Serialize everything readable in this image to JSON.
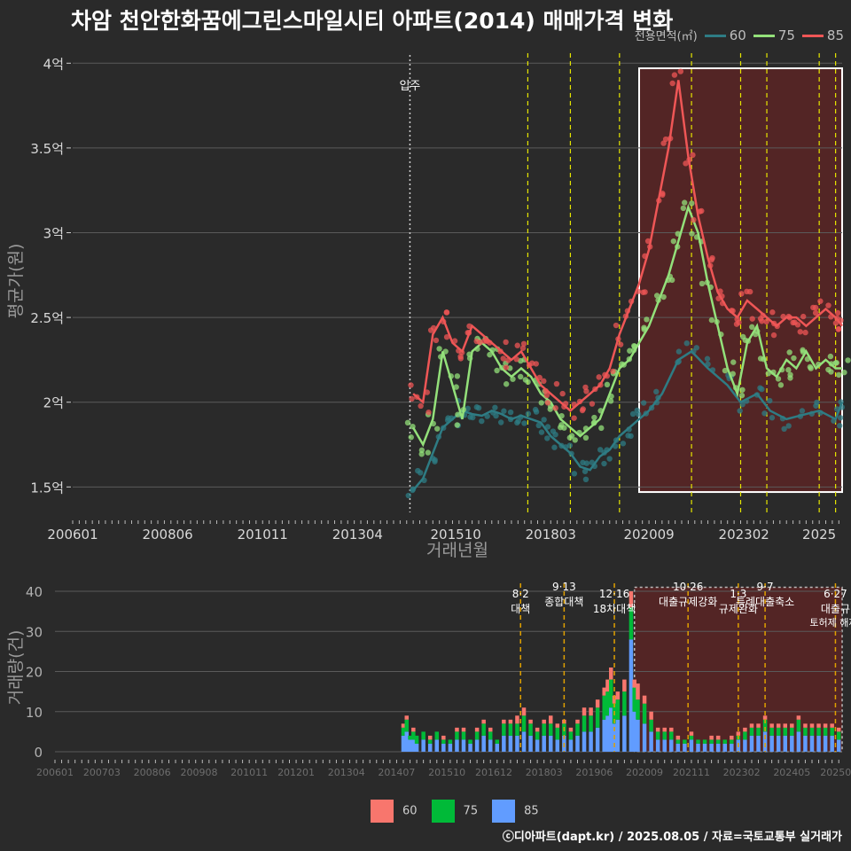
{
  "title": "차암 천안한화꿈에그린스마일시티 아파트(2014) 매매가격 변화",
  "legend_title": "전용면적(㎡)",
  "colors": {
    "s60": "#2e7c84",
    "s75": "#93e07a",
    "s85": "#ef5656",
    "v60": "#f8766d",
    "v75": "#00ba38",
    "v85": "#619cff",
    "policy": "#e6e600",
    "policy_bottom": "#e0a000"
  },
  "credit": "ⓒ디아파트(dapt.kr) / 2025.08.05 / 자료=국토교통부 실거래가",
  "chart_data": [
    {
      "type": "line",
      "title": "차암 천안한화꿈에그린스마일시티 아파트(2014) 매매가격 변화",
      "xlabel": "거래년월",
      "ylabel": "평균가(원)",
      "x_ticks": [
        "200601",
        "200806",
        "201011",
        "201304",
        "201510",
        "201803",
        "202009",
        "202302",
        "2025"
      ],
      "y_ticks": [
        "1.5억",
        "2억",
        "2.5억",
        "3억",
        "3.5억",
        "4억"
      ],
      "y_tick_values": [
        1.5,
        2.0,
        2.5,
        3.0,
        3.5,
        4.0
      ],
      "ylim": [
        1.35,
        4.08
      ],
      "xlim": [
        "2006-01",
        "2025-08"
      ],
      "annotation": {
        "x": "2014-08",
        "label": "입주"
      },
      "policy_lines": [
        "2017-08",
        "2018-09",
        "2019-12",
        "2021-10",
        "2023-01",
        "2023-09",
        "2025-01",
        "2025-06"
      ],
      "highlight_range": [
        "2020-06",
        "2025-08"
      ],
      "series": [
        {
          "name": "60",
          "x": [
            "2014-09",
            "2014-12",
            "2015-03",
            "2015-06",
            "2015-09",
            "2015-12",
            "2016-03",
            "2016-06",
            "2016-09",
            "2016-12",
            "2017-03",
            "2017-06",
            "2017-09",
            "2017-12",
            "2018-03",
            "2018-06",
            "2018-09",
            "2018-12",
            "2019-03",
            "2019-06",
            "2019-09",
            "2019-12",
            "2020-03",
            "2020-06",
            "2020-09",
            "2021-01",
            "2021-06",
            "2021-10",
            "2022-03",
            "2022-09",
            "2023-01",
            "2023-06",
            "2023-10",
            "2024-03",
            "2024-09",
            "2025-01",
            "2025-06",
            "2025-08"
          ],
          "values": [
            1.48,
            1.55,
            1.7,
            1.85,
            1.9,
            1.95,
            1.93,
            1.92,
            1.95,
            1.93,
            1.9,
            1.92,
            1.9,
            1.88,
            1.8,
            1.75,
            1.7,
            1.62,
            1.6,
            1.68,
            1.72,
            1.8,
            1.85,
            1.9,
            1.95,
            2.05,
            2.25,
            2.3,
            2.2,
            2.1,
            2.0,
            2.05,
            1.95,
            1.9,
            1.93,
            1.95,
            1.9,
            2.0
          ]
        },
        {
          "name": "75",
          "x": [
            "2014-09",
            "2014-12",
            "2015-03",
            "2015-06",
            "2015-09",
            "2015-12",
            "2016-03",
            "2016-06",
            "2016-09",
            "2016-12",
            "2017-03",
            "2017-06",
            "2017-09",
            "2017-12",
            "2018-03",
            "2018-06",
            "2018-09",
            "2018-12",
            "2019-03",
            "2019-06",
            "2019-09",
            "2019-12",
            "2020-03",
            "2020-06",
            "2020-09",
            "2020-12",
            "2021-03",
            "2021-06",
            "2021-09",
            "2021-12",
            "2022-03",
            "2022-06",
            "2022-09",
            "2022-12",
            "2023-03",
            "2023-06",
            "2023-09",
            "2023-12",
            "2024-03",
            "2024-06",
            "2024-09",
            "2024-12",
            "2025-03",
            "2025-06",
            "2025-08"
          ],
          "values": [
            1.85,
            1.75,
            1.9,
            2.3,
            2.1,
            1.9,
            2.3,
            2.35,
            2.3,
            2.2,
            2.15,
            2.2,
            2.15,
            2.05,
            2.0,
            1.9,
            1.85,
            1.8,
            1.85,
            1.9,
            2.05,
            2.2,
            2.25,
            2.35,
            2.45,
            2.6,
            2.75,
            2.95,
            3.15,
            3.0,
            2.7,
            2.45,
            2.2,
            2.05,
            2.35,
            2.45,
            2.2,
            2.15,
            2.25,
            2.2,
            2.3,
            2.2,
            2.25,
            2.2,
            2.2
          ]
        },
        {
          "name": "85",
          "x": [
            "2014-09",
            "2014-12",
            "2015-03",
            "2015-06",
            "2015-09",
            "2015-12",
            "2016-03",
            "2016-06",
            "2016-09",
            "2016-12",
            "2017-03",
            "2017-06",
            "2017-09",
            "2017-12",
            "2018-03",
            "2018-06",
            "2018-09",
            "2018-12",
            "2019-03",
            "2019-06",
            "2019-09",
            "2019-12",
            "2020-03",
            "2020-06",
            "2020-09",
            "2020-12",
            "2021-03",
            "2021-06",
            "2021-09",
            "2021-12",
            "2022-03",
            "2022-06",
            "2022-09",
            "2022-12",
            "2023-03",
            "2023-06",
            "2023-09",
            "2023-12",
            "2024-03",
            "2024-06",
            "2024-09",
            "2024-12",
            "2025-03",
            "2025-06",
            "2025-08"
          ],
          "values": [
            2.05,
            2.0,
            2.4,
            2.5,
            2.35,
            2.3,
            2.45,
            2.4,
            2.35,
            2.3,
            2.25,
            2.3,
            2.2,
            2.1,
            2.05,
            2.0,
            1.95,
            2.0,
            2.05,
            2.1,
            2.2,
            2.4,
            2.55,
            2.7,
            2.9,
            3.2,
            3.5,
            3.9,
            3.45,
            3.1,
            2.85,
            2.65,
            2.55,
            2.5,
            2.6,
            2.55,
            2.5,
            2.45,
            2.5,
            2.5,
            2.45,
            2.5,
            2.55,
            2.5,
            2.45
          ]
        }
      ]
    },
    {
      "type": "bar",
      "stacked": true,
      "ylabel": "거래량(건)",
      "x_ticks": [
        "200601",
        "200703",
        "200806",
        "200908",
        "201011",
        "201201",
        "201304",
        "201407",
        "201510",
        "201612",
        "201803",
        "201906",
        "202009",
        "202111",
        "202302",
        "202405",
        "202507"
      ],
      "y_ticks": [
        "0",
        "10",
        "20",
        "30",
        "40"
      ],
      "y_tick_values": [
        0,
        10,
        20,
        30,
        40
      ],
      "ylim": [
        0,
        42
      ],
      "policy_lines": [
        {
          "x": "2017-08",
          "label": "8·2 대책"
        },
        {
          "x": "2018-09",
          "label": "9·13 종합대책"
        },
        {
          "x": "2019-12",
          "label": "12·16 18차대책"
        },
        {
          "x": "2021-10",
          "label": "10·26 대출규제강화"
        },
        {
          "x": "2023-01",
          "label": "1·3 규제완화"
        },
        {
          "x": "2023-09",
          "label": "9·7 특례대출축소"
        },
        {
          "x": "2025-06",
          "label": "6·27 대출규"
        }
      ],
      "policy_extra_labels": [
        "토허제 해제"
      ],
      "highlight_range": [
        "2020-06",
        "2025-08"
      ],
      "legend": [
        "60",
        "75",
        "85"
      ],
      "months": [
        "2014-09",
        "2014-10",
        "2014-11",
        "2014-12",
        "2015-01",
        "2015-03",
        "2015-05",
        "2015-07",
        "2015-09",
        "2015-11",
        "2016-01",
        "2016-03",
        "2016-05",
        "2016-07",
        "2016-09",
        "2016-11",
        "2017-01",
        "2017-03",
        "2017-05",
        "2017-07",
        "2017-09",
        "2017-11",
        "2018-01",
        "2018-03",
        "2018-05",
        "2018-07",
        "2018-09",
        "2018-11",
        "2019-01",
        "2019-03",
        "2019-05",
        "2019-07",
        "2019-09",
        "2019-10",
        "2019-11",
        "2019-12",
        "2020-01",
        "2020-03",
        "2020-05",
        "2020-06",
        "2020-07",
        "2020-09",
        "2020-11",
        "2021-01",
        "2021-03",
        "2021-05",
        "2021-07",
        "2021-09",
        "2021-11",
        "2022-01",
        "2022-03",
        "2022-05",
        "2022-07",
        "2022-09",
        "2022-11",
        "2023-01",
        "2023-03",
        "2023-05",
        "2023-07",
        "2023-09",
        "2023-11",
        "2024-01",
        "2024-03",
        "2024-05",
        "2024-07",
        "2024-09",
        "2024-11",
        "2025-01",
        "2025-03",
        "2025-05",
        "2025-07"
      ],
      "series": [
        {
          "name": "60",
          "values": [
            1,
            1,
            0,
            1,
            0,
            0,
            1,
            0,
            1,
            0,
            1,
            1,
            0,
            1,
            1,
            1,
            0,
            1,
            1,
            2,
            2,
            1,
            1,
            1,
            2,
            1,
            1,
            1,
            1,
            2,
            2,
            2,
            2,
            3,
            3,
            2,
            2,
            3,
            4,
            2,
            4,
            2,
            2,
            1,
            1,
            1,
            1,
            0,
            1,
            0,
            0,
            1,
            1,
            0,
            1,
            1,
            1,
            1,
            1,
            1,
            1,
            1,
            1,
            1,
            1,
            1,
            1,
            1,
            1,
            1,
            1
          ]
        },
        {
          "name": "75",
          "values": [
            2,
            3,
            1,
            2,
            2,
            2,
            1,
            2,
            1,
            1,
            2,
            2,
            1,
            2,
            3,
            2,
            1,
            3,
            3,
            3,
            4,
            3,
            2,
            3,
            3,
            3,
            3,
            2,
            3,
            4,
            4,
            5,
            6,
            6,
            7,
            5,
            5,
            6,
            8,
            6,
            5,
            5,
            3,
            2,
            2,
            2,
            1,
            1,
            1,
            1,
            1,
            1,
            1,
            1,
            1,
            1,
            2,
            2,
            2,
            3,
            2,
            2,
            2,
            2,
            3,
            2,
            2,
            2,
            2,
            2,
            2
          ]
        },
        {
          "name": "85",
          "values": [
            4,
            5,
            3,
            3,
            2,
            3,
            2,
            3,
            2,
            2,
            3,
            3,
            2,
            3,
            4,
            3,
            2,
            4,
            4,
            4,
            5,
            4,
            3,
            4,
            4,
            3,
            4,
            3,
            4,
            5,
            5,
            6,
            8,
            9,
            11,
            7,
            8,
            9,
            28,
            10,
            8,
            7,
            5,
            3,
            3,
            3,
            2,
            2,
            3,
            2,
            2,
            2,
            2,
            2,
            2,
            3,
            3,
            4,
            4,
            5,
            4,
            4,
            4,
            4,
            5,
            4,
            4,
            4,
            4,
            4,
            3
          ]
        }
      ]
    }
  ]
}
